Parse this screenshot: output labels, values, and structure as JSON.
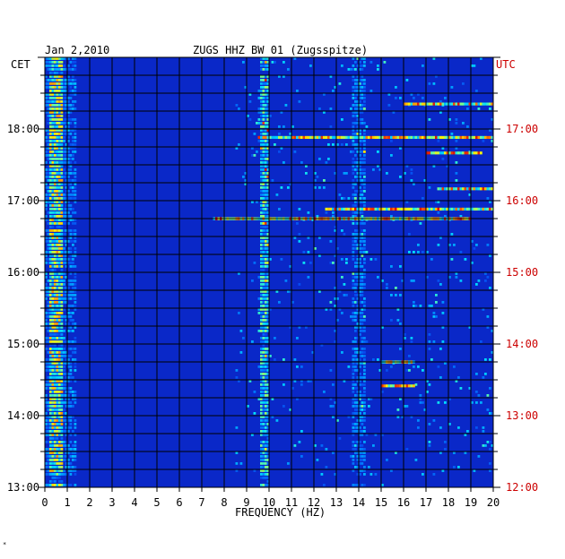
{
  "chart_data": {
    "type": "heatmap",
    "date": "Jan 2,2010",
    "title": "ZUGS HHZ BW 01 (Zugsspitze)",
    "xlabel": "FREQUENCY (HZ)",
    "left_axis_label": "CET",
    "right_axis_label": "UTC",
    "xlim": [
      0,
      20
    ],
    "x_ticks": [
      "0",
      "1",
      "2",
      "3",
      "4",
      "5",
      "6",
      "7",
      "8",
      "9",
      "10",
      "11",
      "12",
      "13",
      "14",
      "15",
      "16",
      "17",
      "18",
      "19",
      "20"
    ],
    "cet_ticks": [
      "18:00",
      "17:00",
      "16:00",
      "15:00",
      "14:00",
      "13:00"
    ],
    "utc_ticks": [
      "17:00",
      "16:00",
      "15:00",
      "14:00",
      "13:00",
      "12:00"
    ],
    "time_range_cet": [
      "13:00",
      "19:00"
    ],
    "colors": {
      "background_band": "#0a28c8",
      "dark_band": "#00108a",
      "axis_red": "#cc0000",
      "grid": "#000000"
    },
    "features": {
      "low_frequency_band_hz": [
        0.2,
        0.8
      ],
      "persistent_line_hz": 9.8,
      "secondary_line_hz": 14.0,
      "bright_events": [
        {
          "time": "18:21",
          "f_from": 16.0,
          "f_to": 20.0
        },
        {
          "time": "17:53",
          "f_from": 9.5,
          "f_to": 20.0
        },
        {
          "time": "17:40",
          "f_from": 17.0,
          "f_to": 19.5
        },
        {
          "time": "17:10",
          "f_from": 17.5,
          "f_to": 20.0
        },
        {
          "time": "16:53",
          "f_from": 12.5,
          "f_to": 20.0
        },
        {
          "time": "16:45",
          "f_from": 7.5,
          "f_to": 19.0
        },
        {
          "time": "14:45",
          "f_from": 15.0,
          "f_to": 16.5
        },
        {
          "time": "14:25",
          "f_from": 15.0,
          "f_to": 16.5
        }
      ]
    }
  },
  "footer": {
    "mark": "*"
  }
}
